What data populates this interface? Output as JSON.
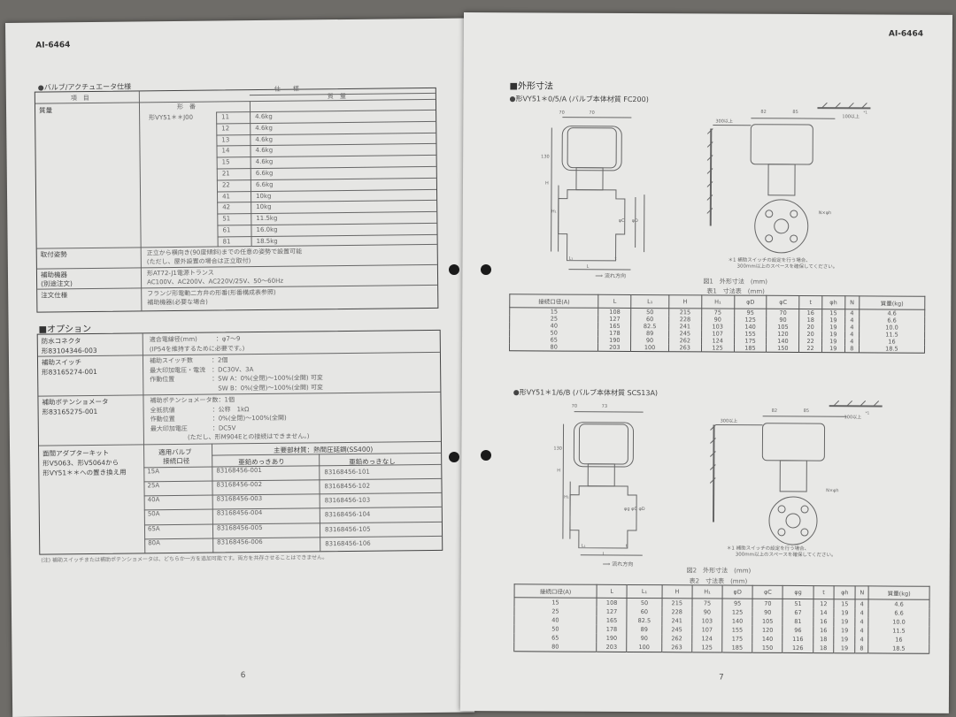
{
  "left_page": {
    "doc_id": "AI-6464",
    "page_number": "6",
    "spec_section": {
      "title": "●バルブ/アクチュエータ仕様",
      "header_item": "項　目",
      "header_spec": "仕　　様",
      "header_model": "形　番",
      "header_weight": "質　量",
      "weight_label": "質量",
      "model": "形VY51＊＊J00",
      "weights": [
        {
          "code": "11",
          "weight": "4.6kg"
        },
        {
          "code": "12",
          "weight": "4.6kg"
        },
        {
          "code": "13",
          "weight": "4.6kg"
        },
        {
          "code": "14",
          "weight": "4.6kg"
        },
        {
          "code": "15",
          "weight": "4.6kg"
        },
        {
          "code": "21",
          "weight": "6.6kg"
        },
        {
          "code": "22",
          "weight": "6.6kg"
        },
        {
          "code": "41",
          "weight": "10kg"
        },
        {
          "code": "42",
          "weight": "10kg"
        },
        {
          "code": "51",
          "weight": "11.5kg"
        },
        {
          "code": "61",
          "weight": "16.0kg"
        },
        {
          "code": "81",
          "weight": "18.5kg"
        }
      ],
      "rows": [
        {
          "label": "取付姿勢",
          "label2": "",
          "lines": [
            "正立から横向き(90度傾斜)までの任意の姿勢で設置可能",
            "(ただし、屋外設置の場合は正立取付)"
          ]
        },
        {
          "label": "補助機器",
          "label2": "(別途注文)",
          "lines": [
            "形AT72-J1電源トランス",
            "AC100V、AC200V、AC220V/25V、50〜60Hz"
          ]
        },
        {
          "label": "注文仕様",
          "label2": "",
          "lines": [
            "フランジ形電動二方弁の形番(形番構成表参照)",
            "補助機器(必要な場合)"
          ]
        }
      ]
    },
    "options_section": {
      "title": "■オプション",
      "items": [
        {
          "name": "防水コネクタ",
          "model": "形83104346-003",
          "lines": [
            "適合電線径(mm)　　　：φ7〜9",
            "(IP54を維持するために必要です。)"
          ]
        },
        {
          "name": "補助スイッチ",
          "model": "形83165274-001",
          "lines": [
            "補助スイッチ数　　　：2個",
            "最大印加電圧・電流　：DC30V、3A",
            "作動位置　　　　　　：SW A：0%(全閉)〜100%(全開) 可変",
            "　　　　　　　　　　　SW B：0%(全閉)〜100%(全開) 可変"
          ]
        },
        {
          "name": "補助ポテンショメータ",
          "model": "形83165275-001",
          "lines": [
            "補助ポテンショメータ数：1個",
            "全抵抗値　　　　　　：公称　1kΩ",
            "作動位置　　　　　　：0%(全閉)〜100%(全開)",
            "最大印加電圧　　　　：DC5V",
            "　　　　　　(ただし、形M904Eとの接続はできません。)"
          ]
        }
      ],
      "adapter": {
        "name": "面間アダプターキット",
        "line2": "形V5063、形V5064から",
        "line3": "形VY51＊＊への置き換え用",
        "col_size_1": "適用バルブ",
        "col_size_2": "接続口径",
        "col_material": "主要部材質：熱間圧延鋼(SS400)",
        "col_plated": "亜鉛めっきあり",
        "col_unplated": "亜鉛めっきなし",
        "rows": [
          {
            "size": "15A",
            "plated": "83168456-001",
            "unplated": "83168456-101"
          },
          {
            "size": "25A",
            "plated": "83168456-002",
            "unplated": "83168456-102"
          },
          {
            "size": "40A",
            "plated": "83168456-003",
            "unplated": "83168456-103"
          },
          {
            "size": "50A",
            "plated": "83168456-004",
            "unplated": "83168456-104"
          },
          {
            "size": "65A",
            "plated": "83168456-005",
            "unplated": "83168456-105"
          },
          {
            "size": "80A",
            "plated": "83168456-006",
            "unplated": "83168456-106"
          }
        ]
      },
      "note": "(注) 補助スイッチまたは補助ポテンショメータは、どちらか一方を追加可能です。両方を共存させることはできません。"
    }
  },
  "right_page": {
    "doc_id": "AI-6464",
    "page_number": "7",
    "section_title": "■外形寸法",
    "fig1": {
      "subtitle": "●形VY51＊0/5/A (バルブ本体材質 FC200)",
      "dims": {
        "w1": "70",
        "w2": "70",
        "h130": "130",
        "H": "H",
        "H1": "H₁",
        "phiC": "φC",
        "phiD": "φD",
        "L1": "L₁",
        "t": "t",
        "L": "L",
        "side_300": "300以上",
        "side_82": "82",
        "side_85": "85",
        "side_100": "100以上",
        "sup": "*1",
        "bolt": "N×φh"
      },
      "flow": "流れ方向",
      "note_line1": "＊1 補助スイッチの設定を行う場合、",
      "note_line2": "300mm以上のスペースを確保してください。",
      "caption": "図1　外形寸法　(mm)",
      "table_caption": "表1　寸法表　(mm)",
      "headers": [
        "接続口径(A)",
        "L",
        "L₁",
        "H",
        "H₁",
        "φD",
        "φC",
        "t",
        "φh",
        "N",
        "質量(kg)"
      ],
      "rows": [
        [
          "15",
          "108",
          "50",
          "215",
          "75",
          "95",
          "70",
          "16",
          "15",
          "4",
          "4.6"
        ],
        [
          "25",
          "127",
          "60",
          "228",
          "90",
          "125",
          "90",
          "18",
          "19",
          "4",
          "6.6"
        ],
        [
          "40",
          "165",
          "82.5",
          "241",
          "103",
          "140",
          "105",
          "20",
          "19",
          "4",
          "10.0"
        ],
        [
          "50",
          "178",
          "89",
          "245",
          "107",
          "155",
          "120",
          "20",
          "19",
          "4",
          "11.5"
        ],
        [
          "65",
          "190",
          "90",
          "262",
          "124",
          "175",
          "140",
          "22",
          "19",
          "4",
          "16"
        ],
        [
          "80",
          "203",
          "100",
          "263",
          "125",
          "185",
          "150",
          "22",
          "19",
          "8",
          "18.5"
        ]
      ]
    },
    "fig2": {
      "subtitle": "●形VY51＊1/6/B (バルブ本体材質 SCS13A)",
      "dims": {
        "w1": "70",
        "w2": "73",
        "h130": "130",
        "H": "H",
        "H1": "H₁",
        "phiC": "φg φC φD",
        "L1": "L₁",
        "t": "t",
        "L": "L",
        "side_300": "300以上",
        "side_82": "82",
        "side_85": "85",
        "side_100": "100以上",
        "sup": "*1",
        "bolt": "N×φh"
      },
      "flow": "流れ方向",
      "note_line1": "＊1 補助スイッチの設定を行う場合、",
      "note_line2": "300mm以上のスペースを確保してください。",
      "caption": "図2　外形寸法　(mm)",
      "table_caption": "表2　寸法表　(mm)",
      "headers": [
        "接続口径(A)",
        "L",
        "L₁",
        "H",
        "H₁",
        "φD",
        "φC",
        "φg",
        "t",
        "φh",
        "N",
        "質量(kg)"
      ],
      "rows": [
        [
          "15",
          "108",
          "50",
          "215",
          "75",
          "95",
          "70",
          "51",
          "12",
          "15",
          "4",
          "4.6"
        ],
        [
          "25",
          "127",
          "60",
          "228",
          "90",
          "125",
          "90",
          "67",
          "14",
          "19",
          "4",
          "6.6"
        ],
        [
          "40",
          "165",
          "82.5",
          "241",
          "103",
          "140",
          "105",
          "81",
          "16",
          "19",
          "4",
          "10.0"
        ],
        [
          "50",
          "178",
          "89",
          "245",
          "107",
          "155",
          "120",
          "96",
          "16",
          "19",
          "4",
          "11.5"
        ],
        [
          "65",
          "190",
          "90",
          "262",
          "124",
          "175",
          "140",
          "116",
          "18",
          "19",
          "4",
          "16"
        ],
        [
          "80",
          "203",
          "100",
          "263",
          "125",
          "185",
          "150",
          "126",
          "18",
          "19",
          "8",
          "18.5"
        ]
      ]
    }
  },
  "colors": {
    "paper": "#e6e6e4",
    "background": "#6e6c68",
    "ink": "#333333",
    "hole": "#1a1a1a"
  }
}
